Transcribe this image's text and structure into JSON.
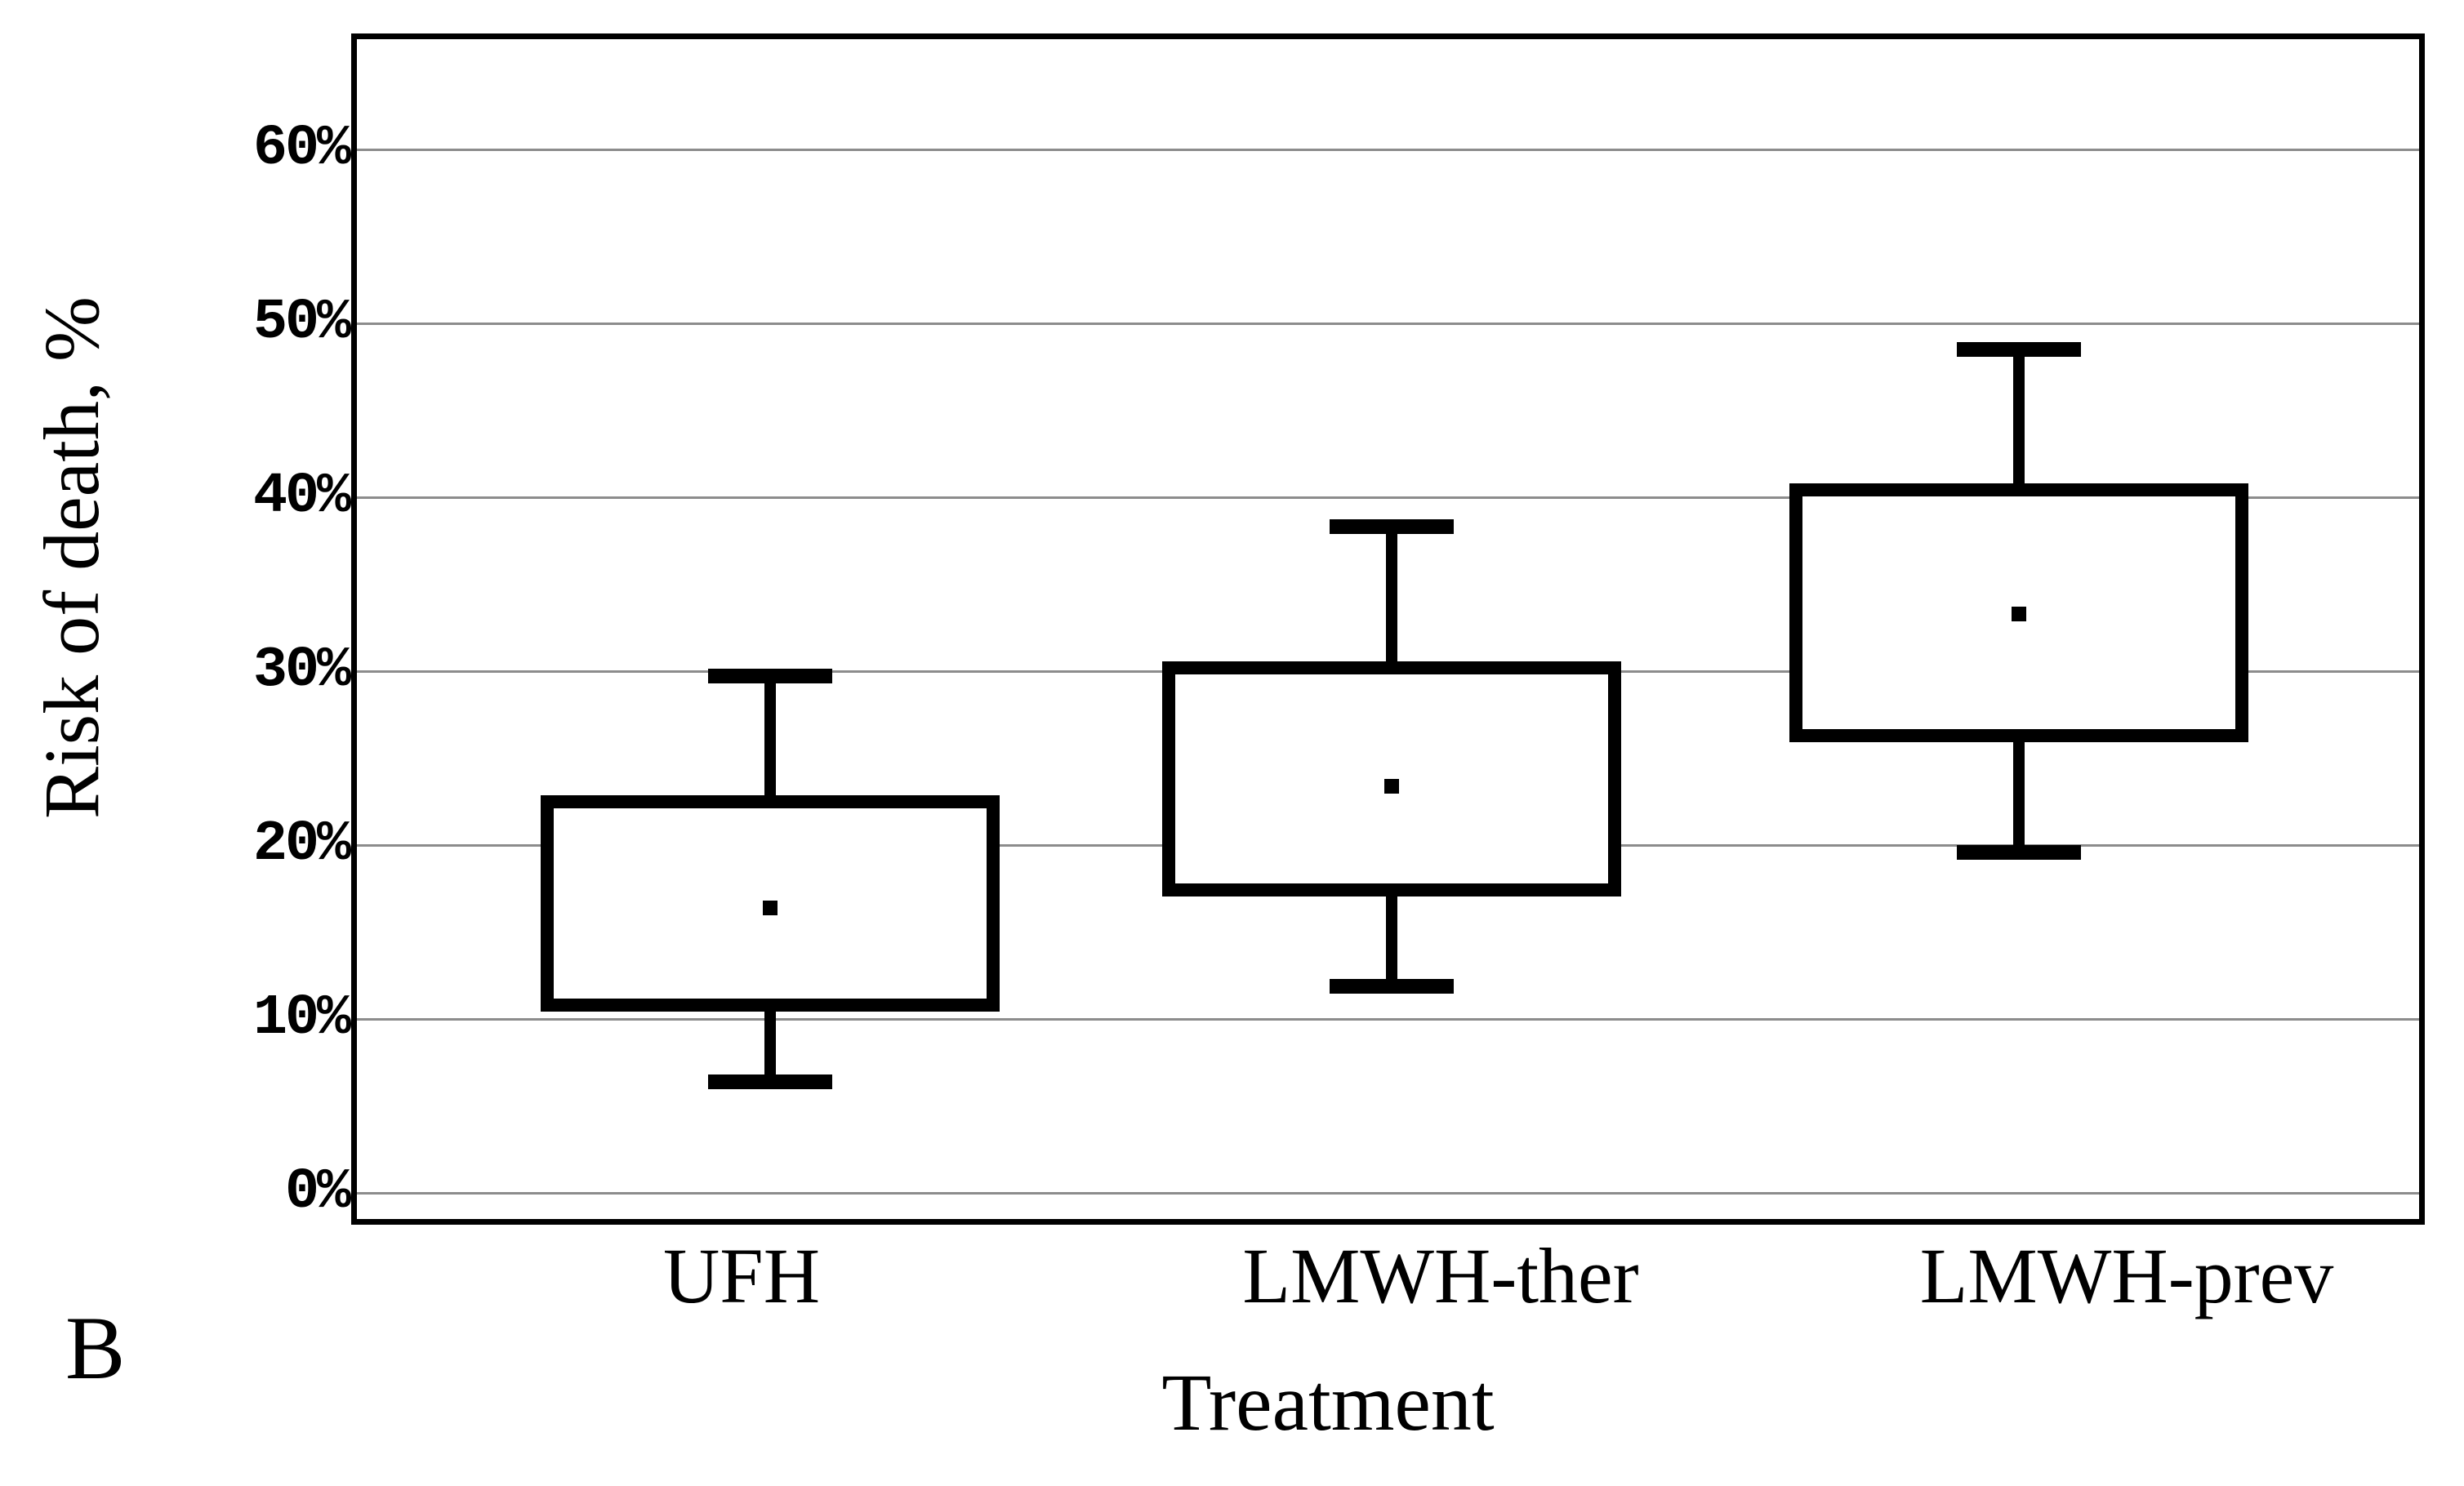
{
  "figure": {
    "panel_label": "B"
  },
  "chart_data": {
    "type": "boxplot",
    "title": "",
    "xlabel": "Treatment",
    "ylabel": "Risk of death, %",
    "categories": [
      "UFH",
      "LMWH-ther",
      "LMWH-prev"
    ],
    "y_ticks": [
      {
        "value": 0,
        "label": "0%"
      },
      {
        "value": 10,
        "label": "10%"
      },
      {
        "value": 20,
        "label": "20%"
      },
      {
        "value": 30,
        "label": "30%"
      },
      {
        "value": 40,
        "label": "40%"
      },
      {
        "value": 50,
        "label": "50%"
      },
      {
        "value": 60,
        "label": "60%"
      }
    ],
    "ylim": [
      -1.5,
      66.3
    ],
    "grid": "horizontal",
    "legend": "none",
    "series": [
      {
        "name": "UFH",
        "whisker_low": 6.4,
        "q1": 10.8,
        "mean": 16.4,
        "q3": 22.5,
        "whisker_high": 29.7
      },
      {
        "name": "LMWH-ther",
        "whisker_low": 11.9,
        "q1": 17.4,
        "mean": 23.4,
        "q3": 30.2,
        "whisker_high": 38.3
      },
      {
        "name": "LMWH-prev",
        "whisker_low": 19.6,
        "q1": 26.3,
        "mean": 33.3,
        "q3": 40.4,
        "whisker_high": 48.5
      }
    ],
    "colors": {
      "box_line": "#000000",
      "gridline": "#8c8c8c",
      "background": "#ffffff",
      "text": "#000000"
    }
  }
}
